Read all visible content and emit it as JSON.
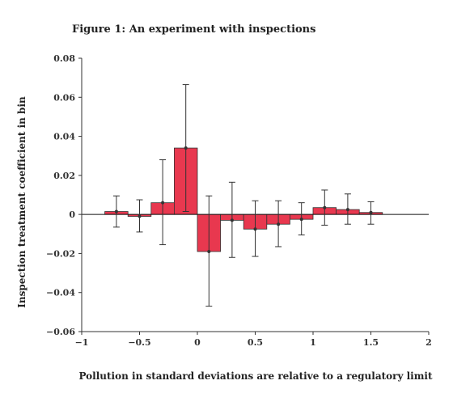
{
  "colors": {
    "bar_fill": "#e8384f",
    "bar_stroke": "#333333",
    "axis": "#333333",
    "text": "#222222"
  },
  "chart_data": {
    "type": "bar",
    "title": "Figure 1: An experiment with inspections",
    "xlabel": "Pollution in standard deviations are relative to a regulatory limit",
    "ylabel": "Inspection treatment coefficient in bin",
    "xlim": [
      -1,
      2
    ],
    "ylim": [
      -0.06,
      0.08
    ],
    "xticks": [
      {
        "value": -1,
        "label": "−1"
      },
      {
        "value": -0.5,
        "label": "−0.5"
      },
      {
        "value": 0,
        "label": "0"
      },
      {
        "value": 0.5,
        "label": "0.5"
      },
      {
        "value": 1,
        "label": "1"
      },
      {
        "value": 1.5,
        "label": "1.5"
      },
      {
        "value": 2,
        "label": "2"
      }
    ],
    "yticks": [
      {
        "value": -0.06,
        "label": "−0.06"
      },
      {
        "value": -0.04,
        "label": "−0.04"
      },
      {
        "value": -0.02,
        "label": "−0.02"
      },
      {
        "value": 0,
        "label": "0"
      },
      {
        "value": 0.02,
        "label": "0.02"
      },
      {
        "value": 0.04,
        "label": "0.04"
      },
      {
        "value": 0.06,
        "label": "0.06"
      },
      {
        "value": 0.08,
        "label": "0.08"
      }
    ],
    "grid": false,
    "bins": [
      {
        "x0": -0.8,
        "x1": -0.6,
        "value": 0.0015,
        "ci_low": -0.0065,
        "ci_high": 0.0095
      },
      {
        "x0": -0.6,
        "x1": -0.4,
        "value": -0.001,
        "ci_low": -0.009,
        "ci_high": 0.0075
      },
      {
        "x0": -0.4,
        "x1": -0.2,
        "value": 0.006,
        "ci_low": -0.0155,
        "ci_high": 0.028
      },
      {
        "x0": -0.2,
        "x1": 0.0,
        "value": 0.034,
        "ci_low": 0.0015,
        "ci_high": 0.0665
      },
      {
        "x0": 0.0,
        "x1": 0.2,
        "value": -0.019,
        "ci_low": -0.047,
        "ci_high": 0.0095
      },
      {
        "x0": 0.2,
        "x1": 0.4,
        "value": -0.003,
        "ci_low": -0.022,
        "ci_high": 0.0165
      },
      {
        "x0": 0.4,
        "x1": 0.6,
        "value": -0.0075,
        "ci_low": -0.0215,
        "ci_high": 0.007
      },
      {
        "x0": 0.6,
        "x1": 0.8,
        "value": -0.005,
        "ci_low": -0.0165,
        "ci_high": 0.007
      },
      {
        "x0": 0.8,
        "x1": 1.0,
        "value": -0.0025,
        "ci_low": -0.0105,
        "ci_high": 0.006
      },
      {
        "x0": 1.0,
        "x1": 1.2,
        "value": 0.0035,
        "ci_low": -0.0055,
        "ci_high": 0.0125
      },
      {
        "x0": 1.2,
        "x1": 1.4,
        "value": 0.0025,
        "ci_low": -0.005,
        "ci_high": 0.0105
      },
      {
        "x0": 1.4,
        "x1": 1.6,
        "value": 0.001,
        "ci_low": -0.005,
        "ci_high": 0.0065
      }
    ]
  }
}
